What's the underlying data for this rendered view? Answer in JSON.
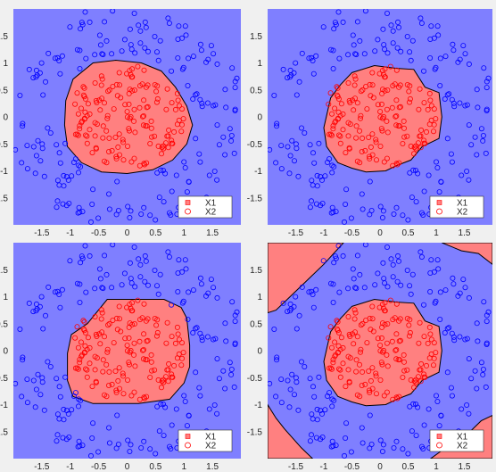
{
  "figure": {
    "background": "#f0f0f0",
    "class_colors": {
      "X1": "#ff8080",
      "X2": "#7f7fff"
    },
    "marker_colors": {
      "X1": "#ff0000",
      "X2": "#0000ff"
    }
  },
  "chart_data": [
    {
      "type": "scatter",
      "title": "",
      "xlabel": "",
      "ylabel": "",
      "xlim": [
        -2,
        2
      ],
      "ylim": [
        -2,
        2
      ],
      "xticks": [
        "-1.5",
        "-1",
        "-0.5",
        "0",
        "0.5",
        "1",
        "1.5"
      ],
      "yticks": [
        "1.5",
        "1",
        "0.5",
        "0",
        "-0.5",
        "-1",
        "-1.5"
      ],
      "grid": false,
      "legend": {
        "position": "bottom-right",
        "entries": [
          {
            "label": "X1",
            "marker": "square"
          },
          {
            "label": "X2",
            "marker": "circle"
          }
        ]
      },
      "decision_boundary": "smooth circular region (radius ~1.1) labeled X1 inside, X2 outside",
      "regions": {
        "X1": [
          [
            [
              -0.6,
              1.0
            ],
            [
              -0.2,
              1.05
            ],
            [
              0.25,
              1.0
            ],
            [
              0.6,
              0.85
            ],
            [
              0.85,
              0.55
            ],
            [
              1.05,
              0.2
            ],
            [
              1.15,
              -0.15
            ],
            [
              1.05,
              -0.5
            ],
            [
              0.8,
              -0.8
            ],
            [
              0.45,
              -0.98
            ],
            [
              0.0,
              -1.05
            ],
            [
              -0.45,
              -1.02
            ],
            [
              -0.8,
              -0.85
            ],
            [
              -1.05,
              -0.55
            ],
            [
              -1.1,
              -0.15
            ],
            [
              -1.08,
              0.3
            ],
            [
              -0.95,
              0.7
            ]
          ]
        ]
      },
      "series": [
        {
          "name": "X1",
          "points": []
        },
        {
          "name": "X2",
          "points": []
        }
      ]
    },
    {
      "type": "scatter",
      "title": "",
      "xlabel": "",
      "ylabel": "",
      "xlim": [
        -2,
        2
      ],
      "ylim": [
        -2,
        2
      ],
      "xticks": [
        "-1.5",
        "-1",
        "-0.5",
        "0",
        "0.5",
        "1",
        "1.5"
      ],
      "yticks": [
        "1.5",
        "1",
        "0.5",
        "0",
        "-0.5",
        "-1",
        "-1.5"
      ],
      "grid": false,
      "legend": {
        "position": "bottom-right",
        "entries": [
          {
            "label": "X1",
            "marker": "square"
          },
          {
            "label": "X2",
            "marker": "circle"
          }
        ]
      },
      "decision_boundary": "jagged roughly circular region, X1 inside",
      "regions": {
        "X1": [
          [
            [
              -0.5,
              0.82
            ],
            [
              -0.1,
              0.95
            ],
            [
              0.3,
              0.9
            ],
            [
              0.6,
              0.88
            ],
            [
              0.8,
              0.55
            ],
            [
              1.05,
              0.45
            ],
            [
              1.1,
              0.0
            ],
            [
              1.05,
              -0.4
            ],
            [
              0.75,
              -0.55
            ],
            [
              0.55,
              -0.8
            ],
            [
              0.3,
              -0.9
            ],
            [
              0.1,
              -1.0
            ],
            [
              -0.25,
              -1.02
            ],
            [
              -0.5,
              -0.95
            ],
            [
              -0.75,
              -0.85
            ],
            [
              -0.95,
              -0.55
            ],
            [
              -1.0,
              -0.2
            ],
            [
              -0.88,
              0.35
            ],
            [
              -0.7,
              0.6
            ]
          ]
        ]
      },
      "series": [
        {
          "name": "X1",
          "points": []
        },
        {
          "name": "X2",
          "points": []
        }
      ]
    },
    {
      "type": "scatter",
      "title": "",
      "xlabel": "",
      "ylabel": "",
      "xlim": [
        -2,
        2
      ],
      "ylim": [
        -2,
        2
      ],
      "xticks": [
        "-1.5",
        "-1",
        "-0.5",
        "0",
        "0.5",
        "1",
        "1.5"
      ],
      "yticks": [
        "1.5",
        "1",
        "0.5",
        "0",
        "-0.5",
        "-1",
        "-1.5"
      ],
      "grid": false,
      "legend": {
        "position": "bottom-right",
        "entries": [
          {
            "label": "X1",
            "marker": "square"
          },
          {
            "label": "X2",
            "marker": "circle"
          }
        ]
      },
      "decision_boundary": "rounded rectangular region, X1 inside",
      "regions": {
        "X1": [
          [
            [
              -0.7,
              0.5
            ],
            [
              -0.35,
              0.95
            ],
            [
              0.2,
              0.95
            ],
            [
              0.65,
              0.95
            ],
            [
              0.95,
              0.8
            ],
            [
              1.05,
              0.6
            ],
            [
              1.1,
              0.1
            ],
            [
              1.1,
              -0.3
            ],
            [
              1.0,
              -0.6
            ],
            [
              0.75,
              -0.9
            ],
            [
              0.2,
              -0.98
            ],
            [
              -0.6,
              -0.98
            ],
            [
              -0.95,
              -0.85
            ],
            [
              -1.05,
              -0.55
            ],
            [
              -1.05,
              -0.05
            ],
            [
              -0.98,
              0.3
            ]
          ]
        ]
      },
      "series": [
        {
          "name": "X1",
          "points": []
        },
        {
          "name": "X2",
          "points": []
        }
      ]
    },
    {
      "type": "scatter",
      "title": "",
      "xlabel": "",
      "ylabel": "",
      "xlim": [
        -2,
        2
      ],
      "ylim": [
        -2,
        2
      ],
      "xticks": [
        "-1.5",
        "-1",
        "-0.5",
        "0",
        "0.5",
        "1",
        "1.5"
      ],
      "yticks": [
        "1.5",
        "1",
        "0.5",
        "0",
        "-0.5",
        "-1",
        "-1.5"
      ],
      "grid": false,
      "legend": {
        "position": "bottom-right",
        "entries": [
          {
            "label": "X1",
            "marker": "square"
          },
          {
            "label": "X2",
            "marker": "circle"
          }
        ]
      },
      "decision_boundary": "central jagged region plus four corner regions labeled X1",
      "regions": {
        "X1": [
          [
            [
              -0.5,
              0.82
            ],
            [
              -0.1,
              0.95
            ],
            [
              0.3,
              0.9
            ],
            [
              0.6,
              0.88
            ],
            [
              0.8,
              0.55
            ],
            [
              1.05,
              0.45
            ],
            [
              1.1,
              0.0
            ],
            [
              1.05,
              -0.4
            ],
            [
              0.75,
              -0.55
            ],
            [
              0.55,
              -0.8
            ],
            [
              0.3,
              -0.9
            ],
            [
              0.1,
              -1.0
            ],
            [
              -0.25,
              -1.02
            ],
            [
              -0.5,
              -0.95
            ],
            [
              -0.75,
              -0.85
            ],
            [
              -0.95,
              -0.55
            ],
            [
              -1.0,
              -0.2
            ],
            [
              -0.88,
              0.35
            ],
            [
              -0.7,
              0.6
            ]
          ],
          [
            [
              -2.0,
              2.0
            ],
            [
              -0.65,
              2.0
            ],
            [
              -1.0,
              1.6
            ],
            [
              -1.3,
              1.3
            ],
            [
              -1.6,
              1.0
            ],
            [
              -1.85,
              0.75
            ],
            [
              -2.0,
              0.7
            ]
          ],
          [
            [
              1.1,
              2.0
            ],
            [
              2.0,
              2.0
            ],
            [
              2.0,
              1.6
            ],
            [
              1.75,
              1.8
            ],
            [
              1.45,
              1.85
            ]
          ],
          [
            [
              -2.0,
              -1.0
            ],
            [
              -1.85,
              -1.25
            ],
            [
              -1.7,
              -1.45
            ],
            [
              -1.4,
              -1.8
            ],
            [
              -1.2,
              -2.0
            ],
            [
              -2.0,
              -2.0
            ]
          ],
          [
            [
              0.9,
              -2.0
            ],
            [
              1.3,
              -1.7
            ],
            [
              1.6,
              -1.5
            ],
            [
              1.8,
              -1.3
            ],
            [
              2.0,
              -1.2
            ],
            [
              2.0,
              -2.0
            ]
          ]
        ]
      },
      "series": [
        {
          "name": "X1",
          "points": []
        },
        {
          "name": "X2",
          "points": []
        }
      ]
    }
  ]
}
